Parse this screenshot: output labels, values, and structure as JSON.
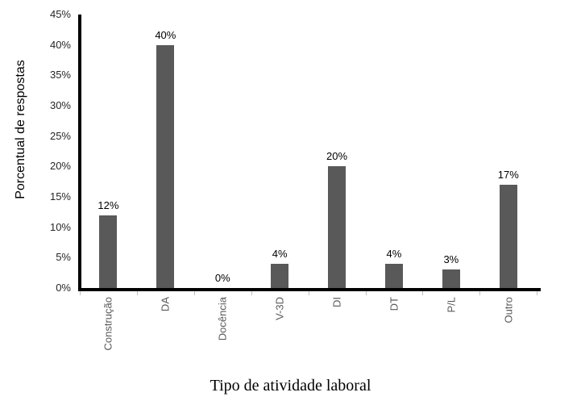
{
  "chart_data": {
    "type": "bar",
    "title": "",
    "categories": [
      "Construção",
      "DA",
      "Docência",
      "V-3D",
      "DI",
      "DT",
      "P/L",
      "Outro"
    ],
    "values": [
      12,
      40,
      0,
      4,
      20,
      4,
      3,
      17
    ],
    "value_labels": [
      "12%",
      "40%",
      "0%",
      "4%",
      "20%",
      "4%",
      "3%",
      "17%"
    ],
    "xlabel": "Tipo de atividade laboral",
    "ylabel": "Porcentual de respostas",
    "ylim": [
      0,
      45
    ],
    "ytick_step": 5,
    "ytick_labels": [
      "0%",
      "5%",
      "10%",
      "15%",
      "20%",
      "25%",
      "30%",
      "35%",
      "40%",
      "45%"
    ],
    "grid": false,
    "legend": false,
    "bar_color": "#595959",
    "axis_color": "#000000",
    "tick_mark_color": "#bfbfbf",
    "ytick_label_color": "#262626",
    "value_label_color": "#000000",
    "category_label_color": "#595959",
    "background_color": "#ffffff"
  }
}
